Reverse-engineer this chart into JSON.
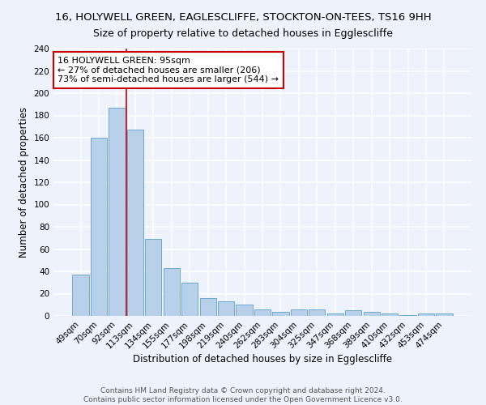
{
  "title1": "16, HOLYWELL GREEN, EAGLESCLIFFE, STOCKTON-ON-TEES, TS16 9HH",
  "title2": "Size of property relative to detached houses in Egglescliffe",
  "xlabel": "Distribution of detached houses by size in Egglescliffe",
  "ylabel": "Number of detached properties",
  "categories": [
    "49sqm",
    "70sqm",
    "92sqm",
    "113sqm",
    "134sqm",
    "155sqm",
    "177sqm",
    "198sqm",
    "219sqm",
    "240sqm",
    "262sqm",
    "283sqm",
    "304sqm",
    "325sqm",
    "347sqm",
    "368sqm",
    "389sqm",
    "410sqm",
    "432sqm",
    "453sqm",
    "474sqm"
  ],
  "values": [
    37,
    160,
    187,
    167,
    69,
    43,
    30,
    16,
    13,
    10,
    6,
    4,
    6,
    6,
    2,
    5,
    4,
    2,
    1,
    2,
    2
  ],
  "bar_color": "#b8d0ea",
  "bar_edge_color": "#6aaad4",
  "vline_x_index": 2,
  "vline_color": "#cc0000",
  "annotation_line1": "16 HOLYWELL GREEN: 95sqm",
  "annotation_line2": "← 27% of detached houses are smaller (206)",
  "annotation_line3": "73% of semi-detached houses are larger (544) →",
  "annotation_box_color": "#ffffff",
  "annotation_box_edge": "#cc0000",
  "ylim": [
    0,
    240
  ],
  "yticks": [
    0,
    20,
    40,
    60,
    80,
    100,
    120,
    140,
    160,
    180,
    200,
    220,
    240
  ],
  "footnote": "Contains HM Land Registry data © Crown copyright and database right 2024.\nContains public sector information licensed under the Open Government Licence v3.0.",
  "bg_color": "#eef2fb",
  "grid_color": "#ffffff",
  "title_fontsize": 9.5,
  "subtitle_fontsize": 9,
  "axis_label_fontsize": 8.5,
  "tick_fontsize": 7.5,
  "annotation_fontsize": 8,
  "footnote_fontsize": 6.5
}
